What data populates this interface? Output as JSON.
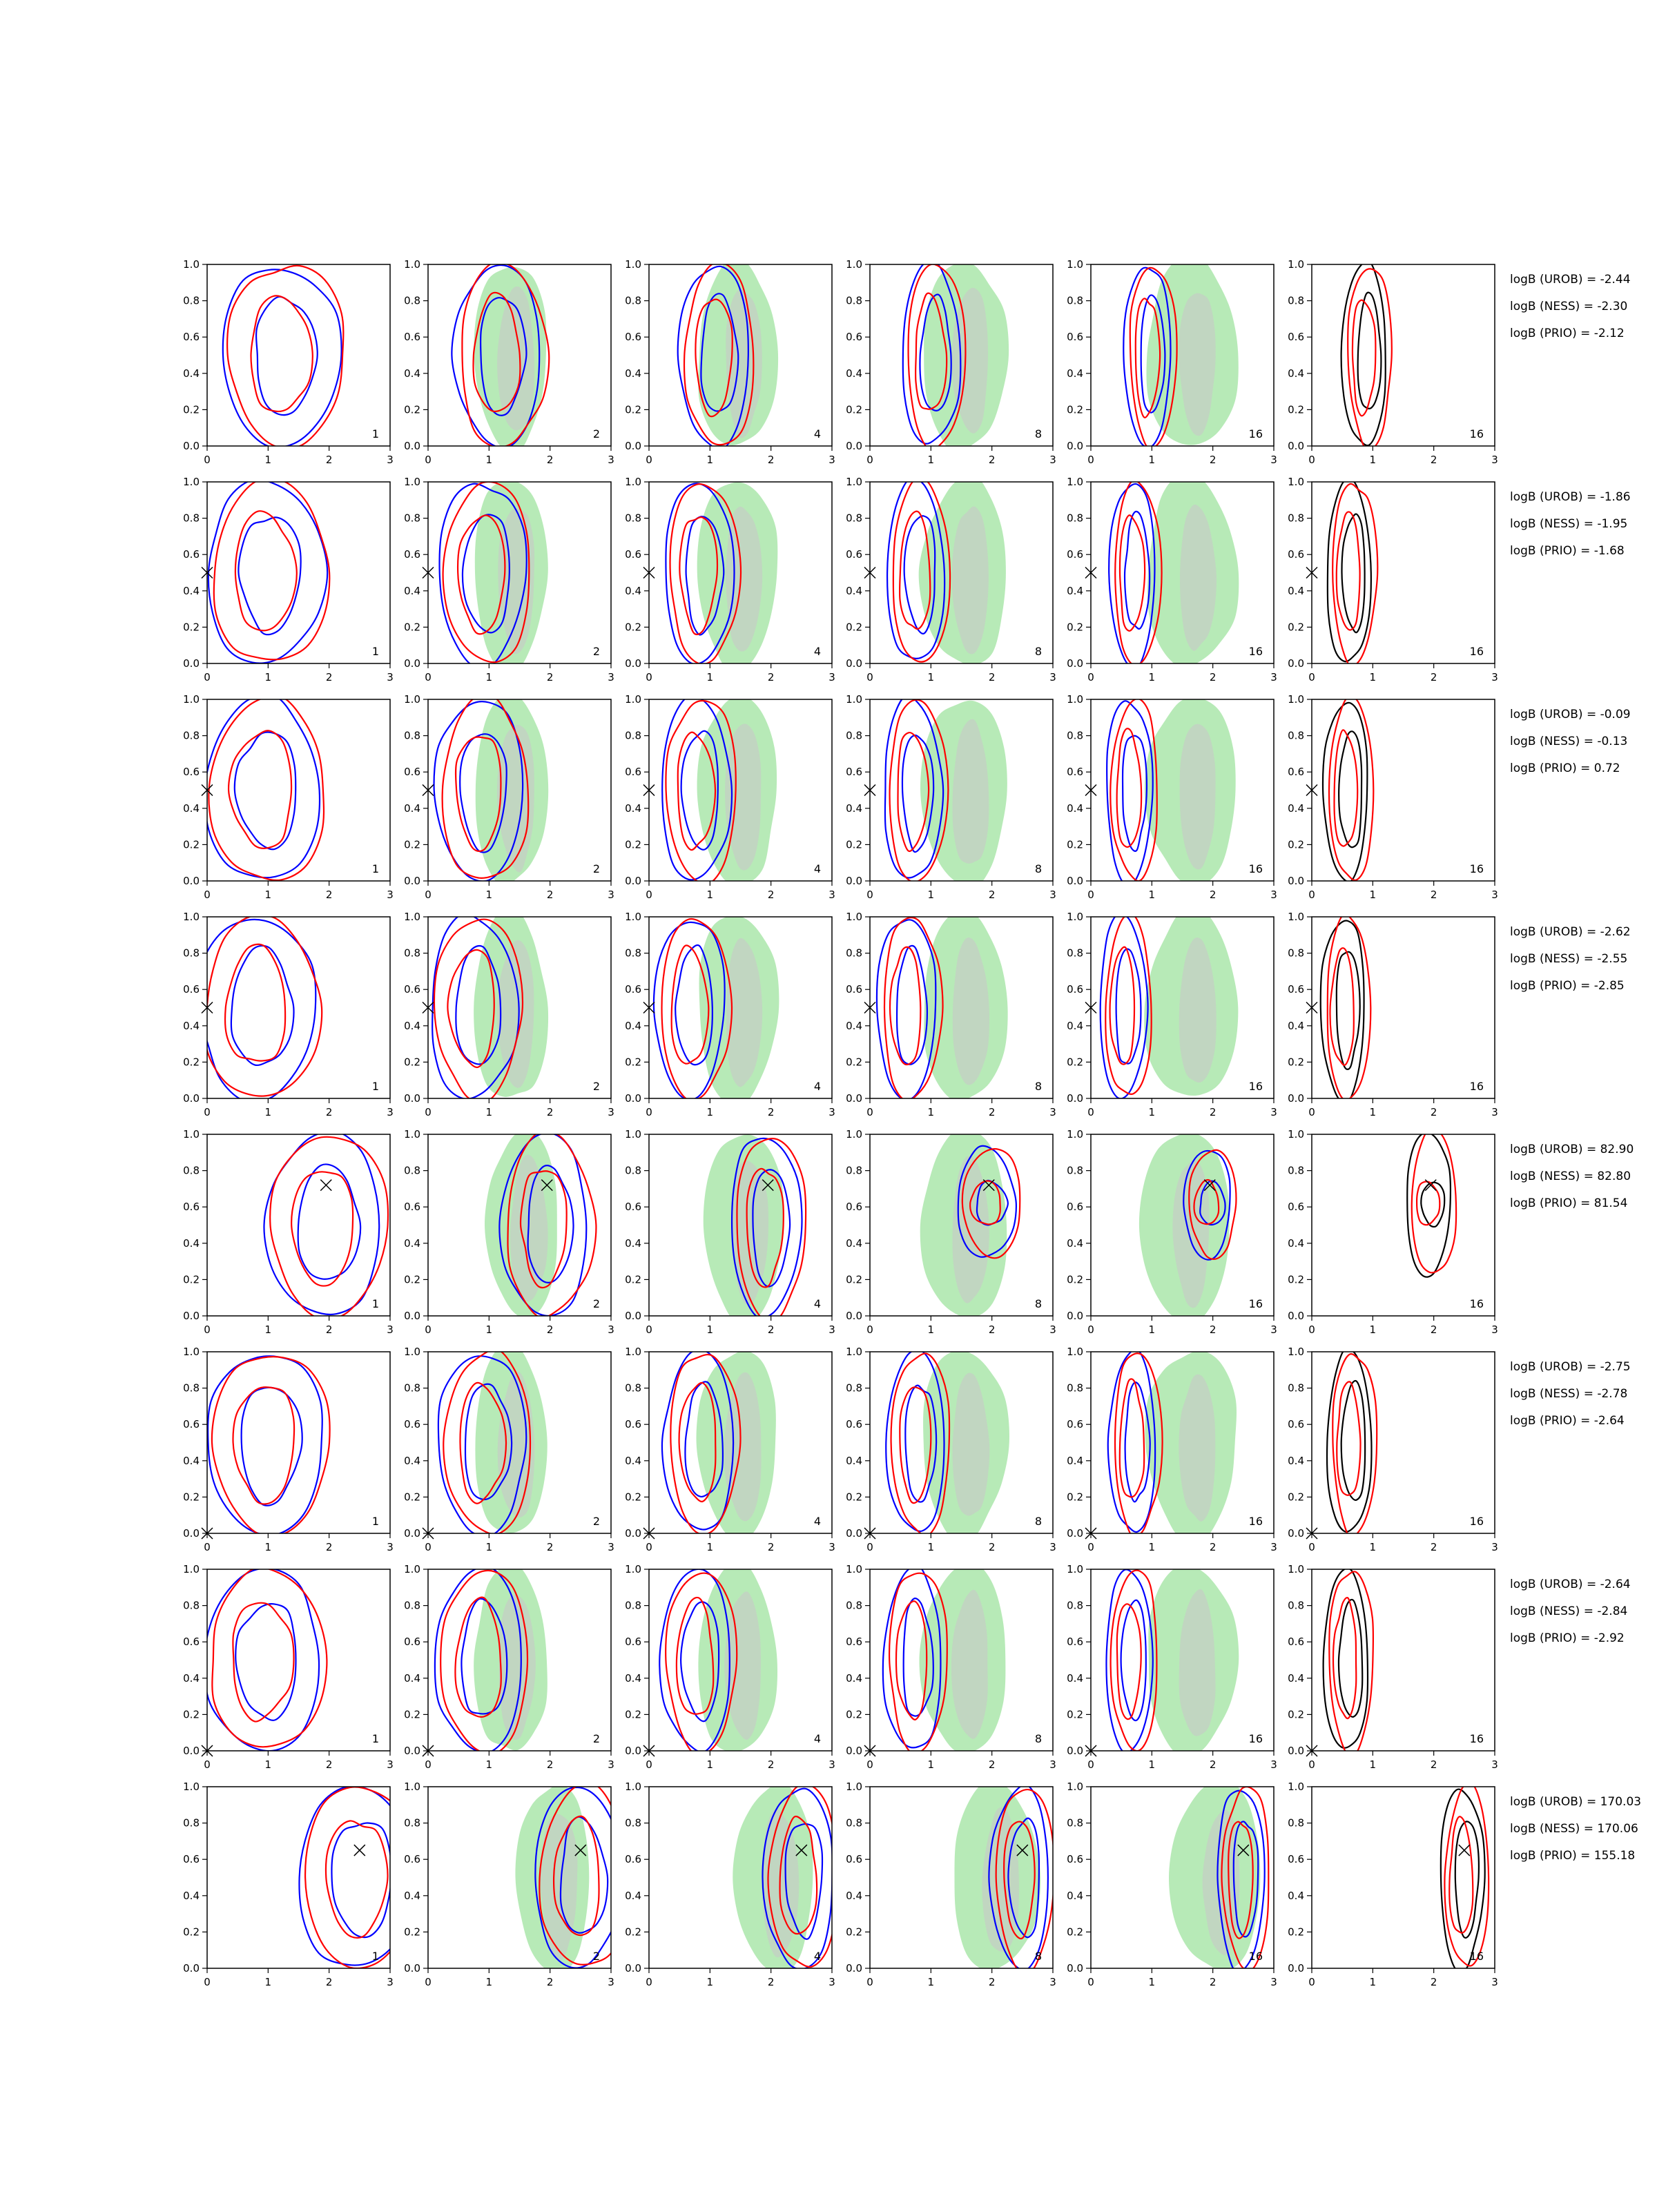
{
  "panel_labels": [
    "1",
    "2",
    "4",
    "8",
    "16",
    "16"
  ],
  "colors": {
    "method_a": "#0000ff",
    "method_b": "#ff0000",
    "reference": "#000000",
    "shade_outer": "#9fe39f",
    "shade_inner": "#c8c8c8"
  },
  "rows": [
    {
      "logB_lines": [
        "logB (UROB) = -2.44",
        "logB (NESS) = -2.30",
        "logB (PRIO) = -2.12"
      ],
      "truth": null
    },
    {
      "logB_lines": [
        "logB (UROB) = -1.86",
        "logB (NESS) = -1.95",
        "logB (PRIO) = -1.68"
      ],
      "truth": [
        0.0,
        0.5
      ]
    },
    {
      "logB_lines": [
        "logB (UROB) = -0.09",
        "logB (NESS) = -0.13",
        "logB (PRIO) = 0.72"
      ],
      "truth": [
        0.0,
        0.5
      ]
    },
    {
      "logB_lines": [
        "logB (UROB) = -2.62",
        "logB (NESS) = -2.55",
        "logB (PRIO) = -2.85"
      ],
      "truth": [
        0.0,
        0.5
      ]
    },
    {
      "logB_lines": [
        "logB (UROB) = 82.90",
        "logB (NESS) = 82.80",
        "logB (PRIO) = 81.54"
      ],
      "truth": [
        1.95,
        0.72
      ]
    },
    {
      "logB_lines": [
        "logB (UROB) = -2.75",
        "logB (NESS) = -2.78",
        "logB (PRIO) = -2.64"
      ],
      "truth": [
        0.0,
        0.0
      ]
    },
    {
      "logB_lines": [
        "logB (UROB) = -2.64",
        "logB (NESS) = -2.84",
        "logB (PRIO) = -2.92"
      ],
      "truth": [
        0.0,
        0.0
      ]
    },
    {
      "logB_lines": [
        "logB (UROB) = 170.03",
        "logB (NESS) = 170.06",
        "logB (PRIO) = 155.18"
      ],
      "truth": [
        2.5,
        0.65
      ]
    }
  ],
  "chart_data": {
    "type": "contour",
    "layout": "8 rows x 6 columns",
    "xlim": [
      0,
      3
    ],
    "ylim": [
      0,
      1
    ],
    "xticks": [
      "0",
      "1",
      "2",
      "3"
    ],
    "yticks": [
      "0.0",
      "0.2",
      "0.4",
      "0.6",
      "0.8",
      "1.0"
    ],
    "grid": false,
    "legend": "none",
    "column_labels": [
      "1",
      "2",
      "4",
      "8",
      "16",
      "16"
    ],
    "row_centers_x": [
      1.25,
      1.0,
      0.95,
      0.85,
      1.95,
      1.0,
      0.95,
      2.5
    ],
    "shading": "approximate green and grey regions in columns 2-5",
    "contours": "approximate 2-level closed contours per method, narrowing with column label"
  }
}
